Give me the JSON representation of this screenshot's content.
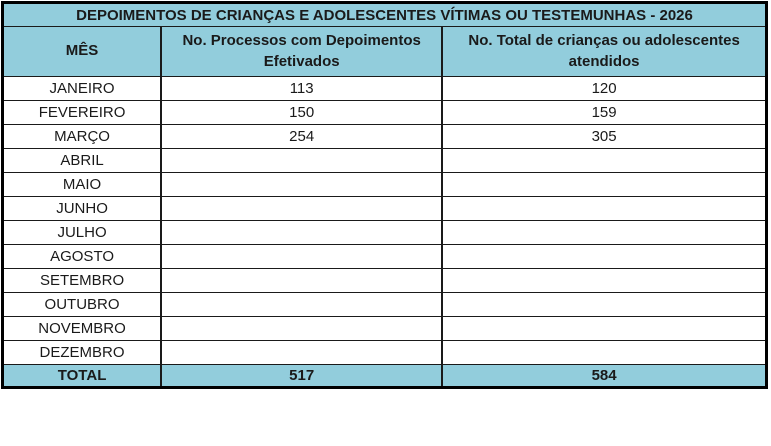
{
  "chart_data": {
    "type": "table",
    "title": "DEPOIMENTOS DE CRIANÇAS E ADOLESCENTES VÍTIMAS OU TESTEMUNHAS - 2026",
    "columns": [
      "MÊS",
      "No. Processos com Depoimentos Efetivados",
      "No. Total de crianças ou adolescentes atendidos"
    ],
    "rows": [
      [
        "JANEIRO",
        "113",
        "120"
      ],
      [
        "FEVEREIRO",
        "150",
        "159"
      ],
      [
        "MARÇO",
        "254",
        "305"
      ],
      [
        "ABRIL",
        "",
        ""
      ],
      [
        "MAIO",
        "",
        ""
      ],
      [
        "JUNHO",
        "",
        ""
      ],
      [
        "JULHO",
        "",
        ""
      ],
      [
        "AGOSTO",
        "",
        ""
      ],
      [
        "SETEMBRO",
        "",
        ""
      ],
      [
        "OUTUBRO",
        "",
        ""
      ],
      [
        "NOVEMBRO",
        "",
        ""
      ],
      [
        "DEZEMBRO",
        "",
        ""
      ]
    ],
    "total_row": [
      "TOTAL",
      "517",
      "584"
    ],
    "totals": {
      "processos": 517,
      "atendidos": 584
    },
    "layout": {
      "header_position": "top",
      "grid": true
    }
  },
  "colors": {
    "header_bg": "#92CDDC",
    "border": "#000000",
    "text": "#1a1a1a",
    "cell_bg": "#ffffff"
  }
}
